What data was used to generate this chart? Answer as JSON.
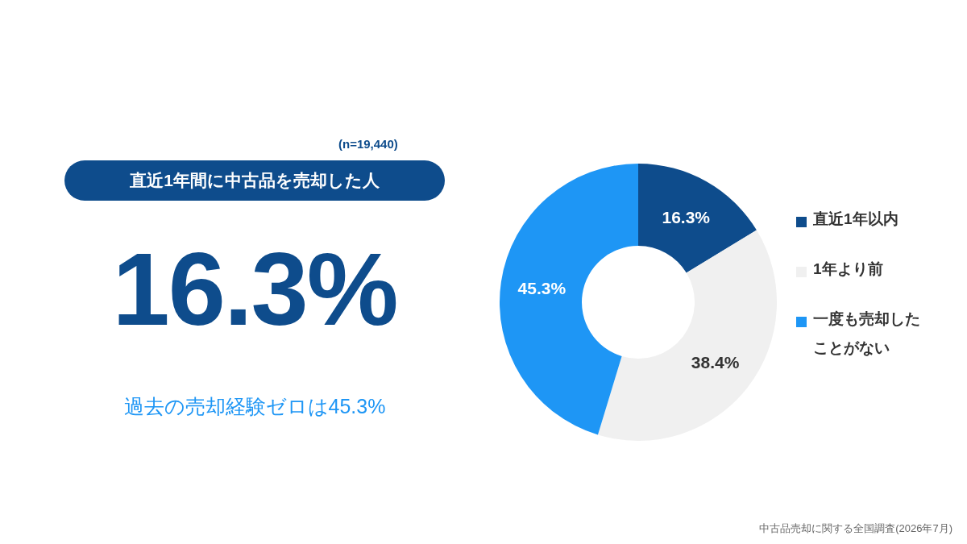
{
  "chart_data": {
    "type": "donut",
    "categories": [
      "直近1年以内",
      "1年より前",
      "一度も売却したことがない"
    ],
    "values": [
      16.3,
      38.4,
      45.3
    ],
    "colors": [
      "#0e4c8c",
      "#f0f0f0",
      "#1e96f5"
    ],
    "value_labels": [
      "16.3%",
      "38.4%",
      "45.3%"
    ],
    "legend": "right",
    "annotations": [
      "(n=19,440)",
      "直近1年間に中古品を売却した人",
      "16.3%",
      "過去の売却経験ゼロは45.3%",
      "中古品売却に関する全国調査(2026年7月)"
    ]
  }
}
